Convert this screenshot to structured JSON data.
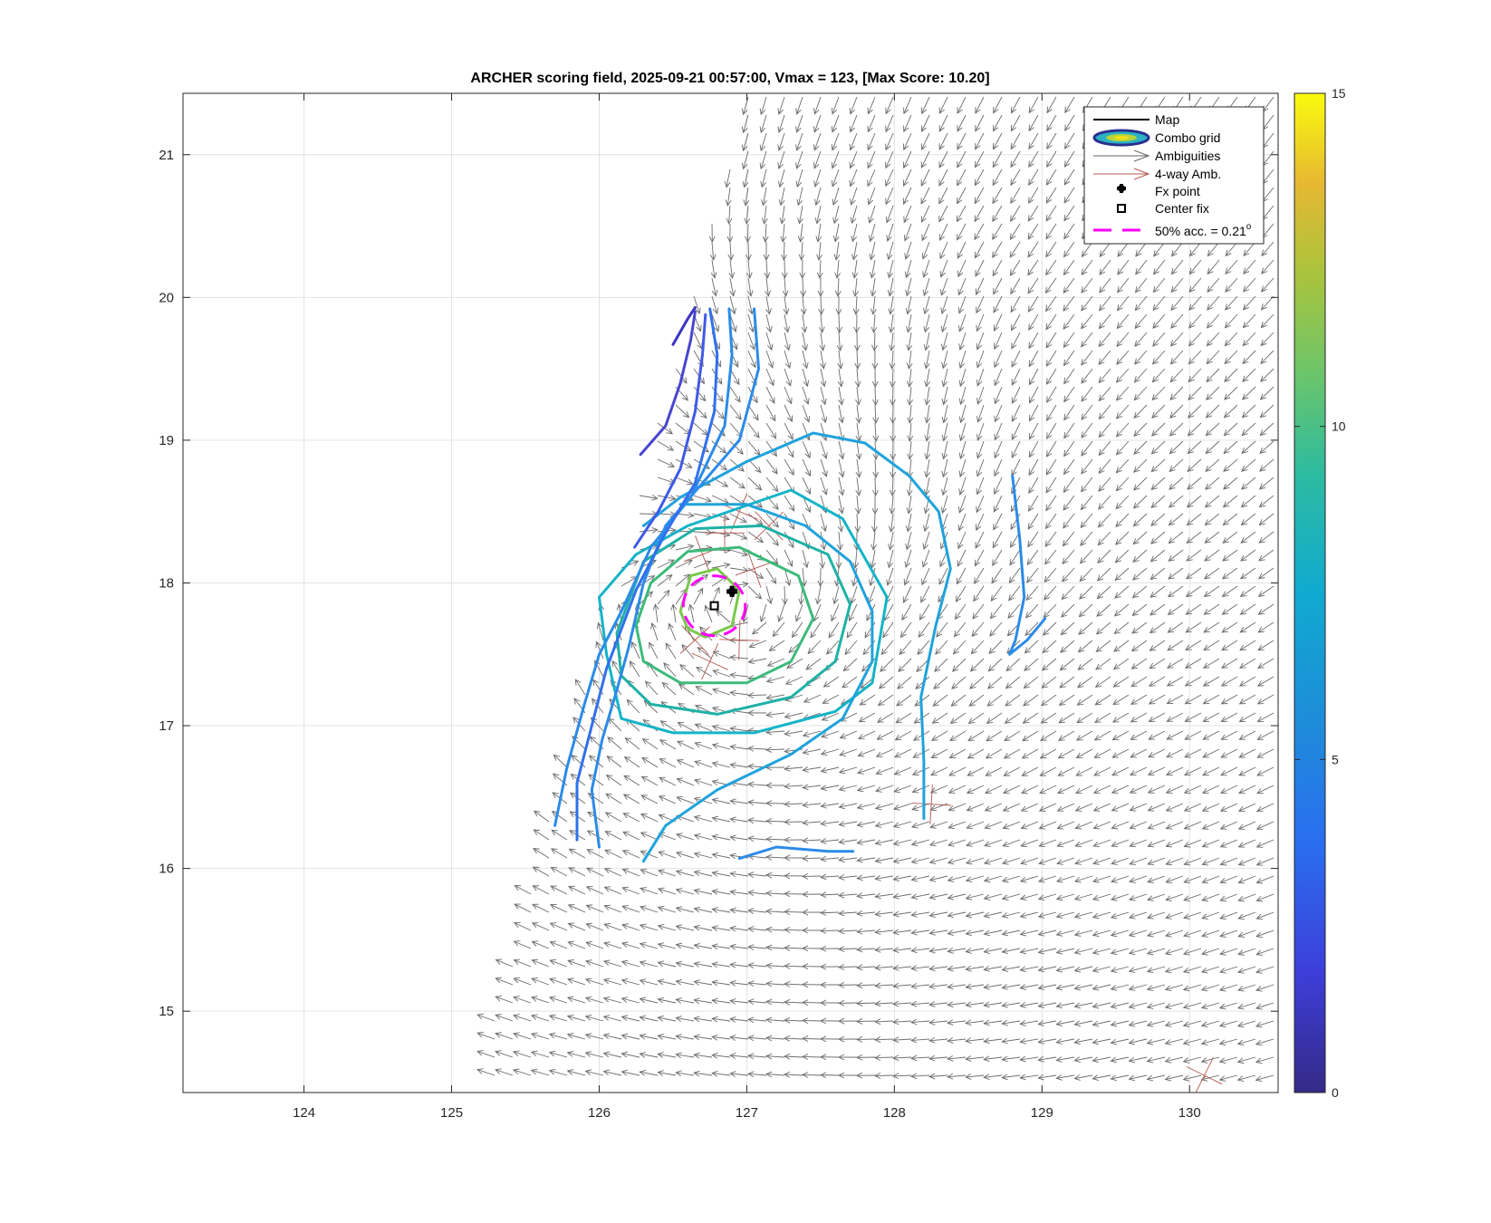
{
  "chart_data": {
    "type": "scatter",
    "title": "ARCHER scoring field, 2025-09-21 00:57:00, Vmax = 123, [Max Score: 10.20]",
    "xlabel": "",
    "ylabel": "",
    "xlim": [
      123.18,
      130.6
    ],
    "ylim": [
      14.43,
      21.43
    ],
    "xticks": [
      124,
      125,
      126,
      127,
      128,
      129,
      130
    ],
    "yticks": [
      15,
      16,
      17,
      18,
      19,
      20,
      21
    ],
    "grid": true,
    "colorbar": {
      "min": 0,
      "max": 15,
      "ticks": [
        0,
        5,
        10,
        15
      ],
      "colormap": "parula"
    },
    "legend": {
      "placement": "top-right",
      "entries": [
        {
          "label": "Map",
          "symbol": "line"
        },
        {
          "label": "Combo grid",
          "symbol": "ellipse"
        },
        {
          "label": "Ambiguities",
          "symbol": "arrow"
        },
        {
          "label": "4-way Amb.",
          "symbol": "red-arrow"
        },
        {
          "label": "Fx point",
          "symbol": "plus"
        },
        {
          "label": "Center fix",
          "symbol": "square"
        },
        {
          "label": "50% acc. = 0.21",
          "superscript": "o",
          "symbol": "dashed"
        }
      ]
    },
    "fx_point": {
      "x": 126.9,
      "y": 17.94
    },
    "center_fix": {
      "x": 126.78,
      "y": 17.84
    },
    "accuracy_radius_deg": 0.21,
    "accuracy_color": "#ff00ff",
    "vortex_center": {
      "x": 126.95,
      "y": 17.85
    },
    "contours": [
      {
        "level": 9.5,
        "color": "#79c94b",
        "points": [
          [
            126.55,
            17.8
          ],
          [
            126.62,
            18.05
          ],
          [
            126.8,
            18.1
          ],
          [
            126.95,
            17.95
          ],
          [
            126.9,
            17.7
          ],
          [
            126.72,
            17.62
          ],
          [
            126.6,
            17.68
          ],
          [
            126.55,
            17.8
          ]
        ]
      },
      {
        "level": 8.8,
        "color": "#3cbb7b",
        "points": [
          [
            126.25,
            17.7
          ],
          [
            126.35,
            18.0
          ],
          [
            126.6,
            18.22
          ],
          [
            126.95,
            18.25
          ],
          [
            127.35,
            18.05
          ],
          [
            127.45,
            17.75
          ],
          [
            127.3,
            17.45
          ],
          [
            127.0,
            17.3
          ],
          [
            126.55,
            17.3
          ],
          [
            126.3,
            17.45
          ],
          [
            126.25,
            17.7
          ]
        ]
      },
      {
        "level": 8.0,
        "color": "#1fb1a6",
        "points": [
          [
            126.12,
            17.65
          ],
          [
            126.3,
            18.15
          ],
          [
            126.65,
            18.38
          ],
          [
            127.1,
            18.4
          ],
          [
            127.55,
            18.2
          ],
          [
            127.7,
            17.85
          ],
          [
            127.6,
            17.45
          ],
          [
            127.3,
            17.2
          ],
          [
            126.8,
            17.08
          ],
          [
            126.35,
            17.15
          ],
          [
            126.15,
            17.35
          ],
          [
            126.12,
            17.65
          ]
        ]
      },
      {
        "level": 7.0,
        "color": "#14b3c7",
        "points": [
          [
            126.0,
            17.9
          ],
          [
            126.25,
            18.2
          ],
          [
            126.6,
            18.4
          ],
          [
            127.3,
            18.65
          ],
          [
            127.65,
            18.45
          ],
          [
            127.95,
            17.9
          ],
          [
            127.85,
            17.3
          ],
          [
            127.6,
            17.1
          ],
          [
            127.05,
            16.95
          ],
          [
            126.5,
            16.95
          ],
          [
            126.15,
            17.05
          ],
          [
            126.05,
            17.5
          ],
          [
            126.0,
            17.9
          ]
        ]
      },
      {
        "level": 5.5,
        "color": "#1fa3dc",
        "points": [
          [
            126.3,
            18.4
          ],
          [
            126.55,
            18.6
          ],
          [
            127.0,
            18.85
          ],
          [
            127.45,
            19.05
          ],
          [
            127.8,
            18.98
          ],
          [
            128.1,
            18.75
          ],
          [
            128.3,
            18.5
          ],
          [
            128.38,
            18.1
          ],
          [
            128.28,
            17.7
          ],
          [
            128.18,
            17.2
          ],
          [
            128.2,
            16.75
          ],
          [
            128.2,
            16.35
          ]
        ]
      },
      {
        "level": 5.5,
        "color": "#1fa3dc",
        "points": [
          [
            126.3,
            16.05
          ],
          [
            126.45,
            16.3
          ],
          [
            126.8,
            16.55
          ],
          [
            127.3,
            16.8
          ],
          [
            127.65,
            17.05
          ],
          [
            127.85,
            17.45
          ],
          [
            127.85,
            17.8
          ],
          [
            127.7,
            18.15
          ],
          [
            127.4,
            18.4
          ],
          [
            127.0,
            18.55
          ],
          [
            126.55,
            18.55
          ]
        ]
      },
      {
        "level": 5.0,
        "color": "#2b8be8",
        "points": [
          [
            126.0,
            16.15
          ],
          [
            125.95,
            16.55
          ],
          [
            126.02,
            16.9
          ],
          [
            126.12,
            17.25
          ],
          [
            126.2,
            17.55
          ],
          [
            126.3,
            18.0
          ],
          [
            126.45,
            18.4
          ],
          [
            126.7,
            18.7
          ],
          [
            126.95,
            19.0
          ],
          [
            127.08,
            19.5
          ],
          [
            127.05,
            19.92
          ]
        ]
      },
      {
        "level": 5.0,
        "color": "#2b8be8",
        "points": [
          [
            128.8,
            18.75
          ],
          [
            128.85,
            18.3
          ],
          [
            128.88,
            17.9
          ],
          [
            128.82,
            17.6
          ],
          [
            128.78,
            17.5
          ],
          [
            128.9,
            17.6
          ],
          [
            129.02,
            17.75
          ]
        ]
      },
      {
        "level": 5.0,
        "color": "#2b8be8",
        "points": [
          [
            125.7,
            16.3
          ],
          [
            125.78,
            16.7
          ],
          [
            125.9,
            17.15
          ],
          [
            126.0,
            17.5
          ],
          [
            126.15,
            17.8
          ],
          [
            126.35,
            18.25
          ],
          [
            126.62,
            18.6
          ],
          [
            126.85,
            19.1
          ],
          [
            126.9,
            19.6
          ],
          [
            126.88,
            19.92
          ]
        ]
      },
      {
        "level": 5.0,
        "color": "#2b8be8",
        "points": [
          [
            126.95,
            16.07
          ],
          [
            127.2,
            16.15
          ],
          [
            127.55,
            16.12
          ],
          [
            127.72,
            16.12
          ]
        ]
      },
      {
        "level": 4.5,
        "color": "#3070ee",
        "points": [
          [
            125.85,
            16.2
          ],
          [
            125.85,
            16.6
          ],
          [
            126.05,
            17.4
          ],
          [
            126.25,
            17.95
          ],
          [
            126.45,
            18.35
          ],
          [
            126.65,
            18.7
          ],
          [
            126.78,
            19.2
          ],
          [
            126.8,
            19.6
          ],
          [
            126.75,
            19.92
          ]
        ]
      },
      {
        "level": 3.5,
        "color": "#3f5ae6",
        "points": [
          [
            126.24,
            18.25
          ],
          [
            126.4,
            18.5
          ],
          [
            126.55,
            18.8
          ],
          [
            126.65,
            19.2
          ],
          [
            126.7,
            19.6
          ],
          [
            126.72,
            19.88
          ]
        ]
      },
      {
        "level": 2.5,
        "color": "#4845d0",
        "points": [
          [
            126.28,
            18.9
          ],
          [
            126.45,
            19.1
          ],
          [
            126.55,
            19.4
          ],
          [
            126.62,
            19.7
          ],
          [
            126.65,
            19.9
          ]
        ]
      },
      {
        "level": 1.5,
        "color": "#3a34c0",
        "points": [
          [
            126.5,
            19.67
          ],
          [
            126.6,
            19.85
          ],
          [
            126.65,
            19.93
          ]
        ]
      }
    ]
  }
}
